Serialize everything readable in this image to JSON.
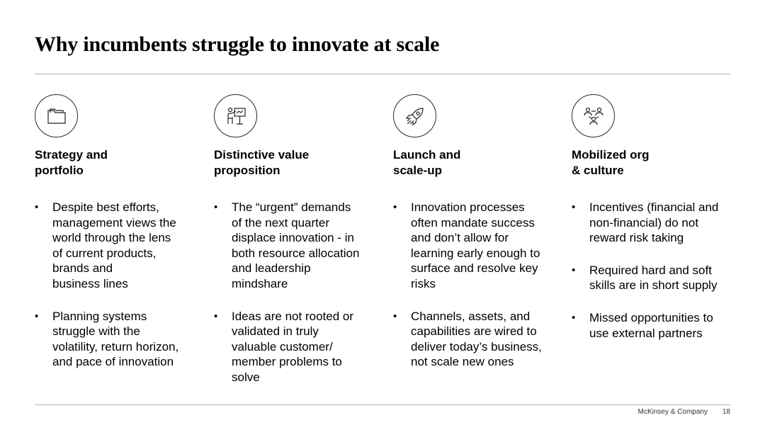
{
  "slide": {
    "title": "Why incumbents struggle to innovate at scale"
  },
  "columns": [
    {
      "icon": "folder-icon",
      "heading": "Strategy and\nportfolio",
      "bullets": [
        "Despite best efforts,\nmanagement views the\nworld through the lens\nof current products,\nbrands and\nbusiness lines",
        "Planning systems\nstruggle with the\nvolatility, return horizon,\nand pace of innovation"
      ]
    },
    {
      "icon": "presenter-icon",
      "heading": "Distinctive value\nproposition",
      "bullets": [
        "The “urgent” demands\nof the next quarter\ndisplace innovation - in\nboth resource allocation\nand leadership\nmindshare",
        "Ideas are not rooted or\nvalidated in truly\nvaluable customer/\nmember problems to\nsolve"
      ]
    },
    {
      "icon": "rocket-icon",
      "heading": "Launch and\nscale-up",
      "bullets": [
        "Innovation processes\noften mandate success\nand don’t allow for\nlearning early enough to\nsurface and resolve key\nrisks",
        "Channels, assets, and\ncapabilities are wired to\ndeliver today’s business,\nnot scale new ones"
      ]
    },
    {
      "icon": "people-network-icon",
      "heading": "Mobilized org\n& culture",
      "bullets": [
        "Incentives (financial and\nnon-financial) do not\nreward risk taking",
        "Required hard and soft\nskills are in short supply",
        "Missed opportunities to\nuse external partners"
      ]
    }
  ],
  "footer": {
    "company": "McKinsey & Company",
    "page_number": "18"
  }
}
